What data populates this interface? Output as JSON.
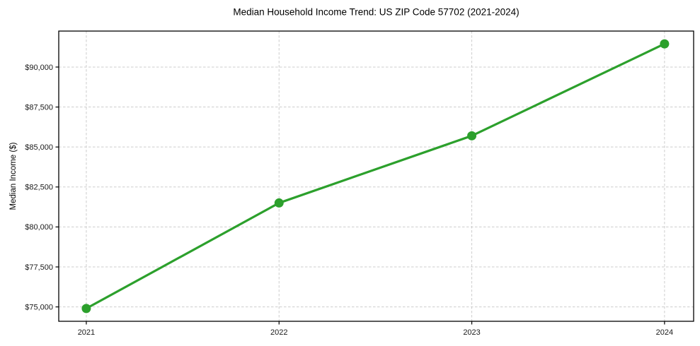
{
  "figure": {
    "title": "Median Household Income Trend: US ZIP Code 57702 (2021-2024)"
  },
  "chart_data": {
    "type": "line",
    "title": "Median Household Income Trend: US ZIP Code 57702 (2021-2024)",
    "xlabel": "",
    "ylabel": "Median Income ($)",
    "x": [
      2021,
      2022,
      2023,
      2024
    ],
    "xtick_labels": [
      "2021",
      "2022",
      "2023",
      "2024"
    ],
    "series": [
      {
        "name": "Median Household Income",
        "values": [
          74900,
          81500,
          85700,
          91450
        ],
        "value_labels": [
          "$74,900",
          "$81,500",
          "$85,700",
          "$91,450"
        ],
        "color": "#2ca02c",
        "marker": "circle"
      }
    ],
    "yticks": [
      75000,
      77500,
      80000,
      82500,
      85000,
      87500,
      90000
    ],
    "ytick_labels": [
      "$75,000",
      "$77,500",
      "$80,000",
      "$82,500",
      "$85,000",
      "$87,500",
      "$90,000"
    ],
    "ylim": [
      74100,
      92250
    ],
    "xlim": [
      2020.857,
      2024.151
    ],
    "grid": true,
    "grid_axis": "both",
    "grid_style": "dashed",
    "legend_position": "none",
    "background": "#ffffff"
  },
  "style": {
    "line_color": "#2ca02c",
    "grid_color": "#cdcdcd",
    "spine_color": "#000000",
    "title_color": "#000000",
    "tick_label_color": "#1a1a1a"
  }
}
